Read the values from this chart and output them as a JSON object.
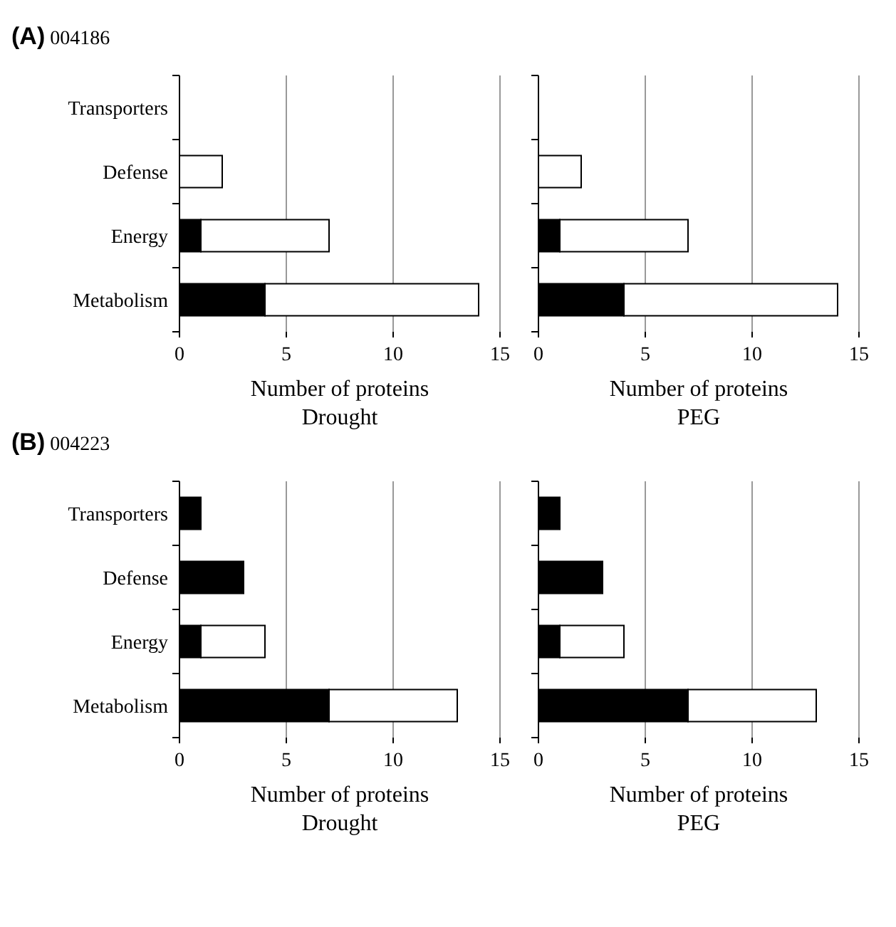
{
  "chart_data": [
    {
      "type": "bar",
      "orientation": "horizontal",
      "stacked": true,
      "title": "(A) 004186",
      "xlabel": "Number of proteins\nDrought",
      "categories": [
        "Transporters",
        "Defense",
        "Energy",
        "Metabolism"
      ],
      "series": [
        {
          "color": "#000000",
          "values": [
            null,
            null,
            1,
            4
          ]
        },
        {
          "color": "#ffffff",
          "values": [
            null,
            2,
            6,
            10
          ]
        }
      ],
      "xlim": [
        0,
        15
      ],
      "xticks": [
        0,
        5,
        10,
        15
      ],
      "grid": "x"
    },
    {
      "type": "bar",
      "orientation": "horizontal",
      "stacked": true,
      "xlabel": "Number of proteins\nPEG",
      "categories": [
        null,
        null,
        null,
        null
      ],
      "series": [
        {
          "color": "#000000",
          "values": [
            null,
            null,
            1,
            4
          ]
        },
        {
          "color": "#ffffff",
          "values": [
            null,
            2,
            6,
            10
          ]
        }
      ],
      "xlim": [
        0,
        15
      ],
      "xticks": [
        0,
        5,
        10,
        15
      ],
      "grid": "x"
    },
    {
      "type": "bar",
      "orientation": "horizontal",
      "stacked": true,
      "title": "(B) 004223",
      "xlabel": "Number of proteins\nDrought",
      "categories": [
        "Transporters",
        "Defense",
        "Energy",
        "Metabolism"
      ],
      "series": [
        {
          "color": "#000000",
          "values": [
            1,
            3,
            1,
            7
          ]
        },
        {
          "color": "#ffffff",
          "values": [
            null,
            null,
            3,
            6
          ]
        }
      ],
      "xlim": [
        0,
        15
      ],
      "xticks": [
        0,
        5,
        10,
        15
      ],
      "grid": "x"
    },
    {
      "type": "bar",
      "orientation": "horizontal",
      "stacked": true,
      "xlabel": "Number of proteins\nPEG",
      "categories": [
        null,
        null,
        null,
        null
      ],
      "series": [
        {
          "color": "#000000",
          "values": [
            1,
            3,
            1,
            7
          ]
        },
        {
          "color": "#ffffff",
          "values": [
            null,
            null,
            3,
            6
          ]
        }
      ],
      "xlim": [
        0,
        15
      ],
      "xticks": [
        0,
        5,
        10,
        15
      ],
      "grid": "x"
    }
  ]
}
